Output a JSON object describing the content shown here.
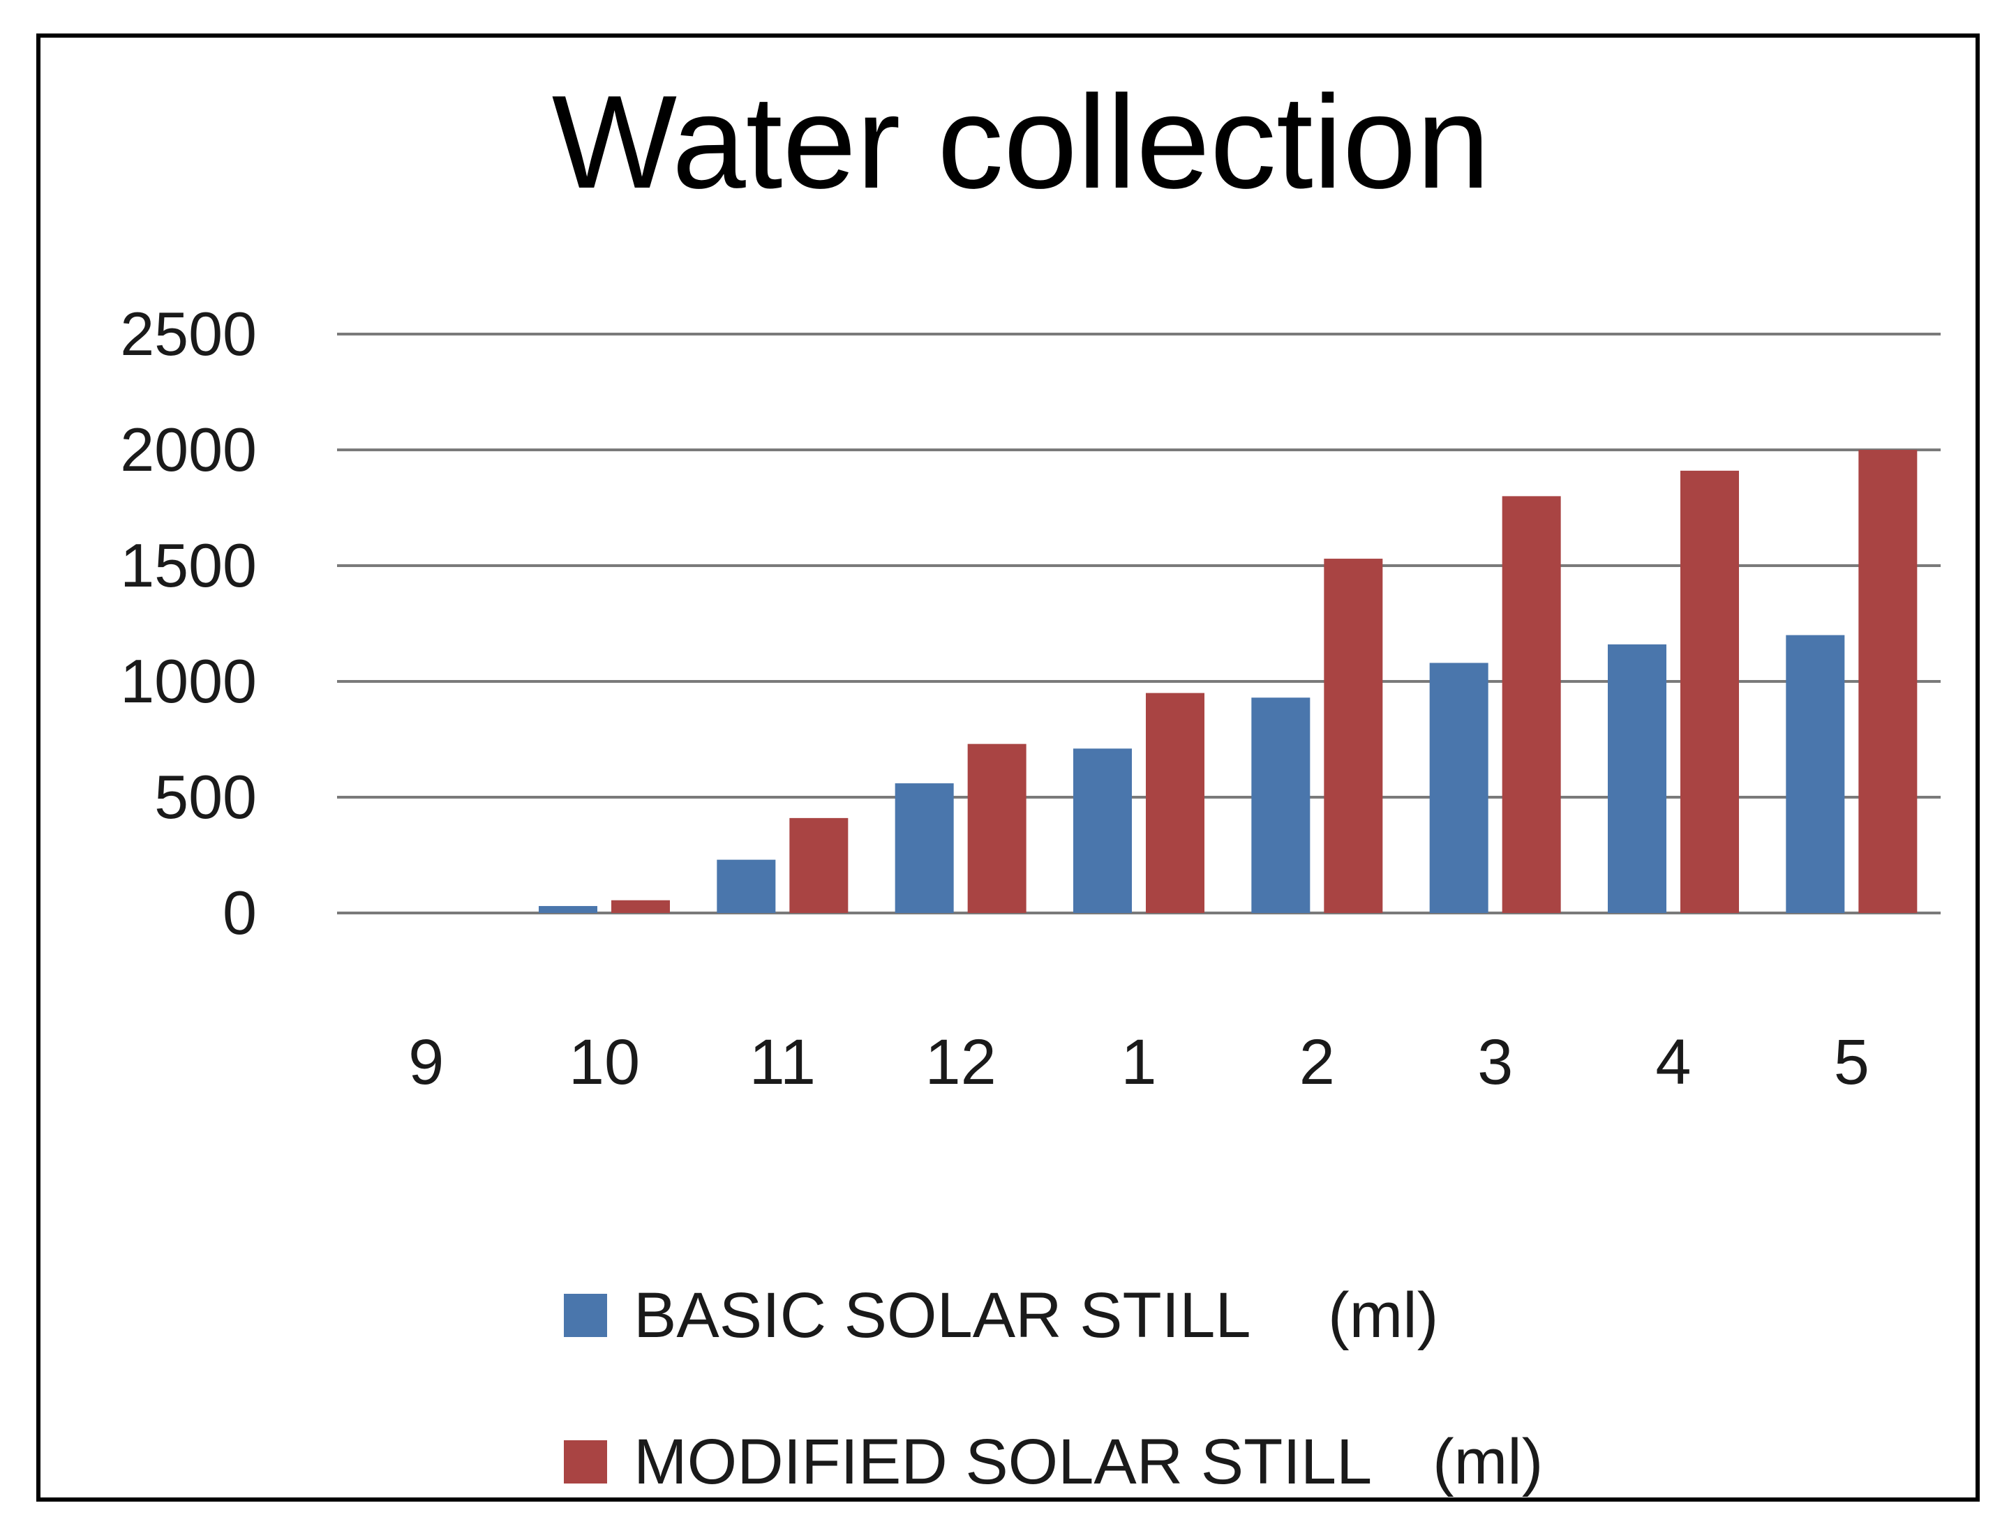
{
  "chart_data": {
    "type": "bar",
    "title": "Water collection",
    "xlabel": "",
    "ylabel": "",
    "categories": [
      "9",
      "10",
      "11",
      "12",
      "1",
      "2",
      "3",
      "4",
      "5"
    ],
    "yticks": [
      "0",
      "500",
      "1000",
      "1500",
      "2000",
      "2500"
    ],
    "ylim": [
      0,
      2500
    ],
    "grid": true,
    "legend_position": "bottom",
    "series": [
      {
        "name": "BASIC SOLAR STILL",
        "unit": "(ml)",
        "color": "#4a76ac",
        "values": [
          0,
          30,
          230,
          560,
          710,
          930,
          1080,
          1160,
          1200
        ]
      },
      {
        "name": "MODIFIED SOLAR STILL",
        "unit": "(ml)",
        "color": "#a94443",
        "values": [
          0,
          55,
          410,
          730,
          950,
          1530,
          1800,
          1910,
          2000
        ]
      }
    ]
  }
}
